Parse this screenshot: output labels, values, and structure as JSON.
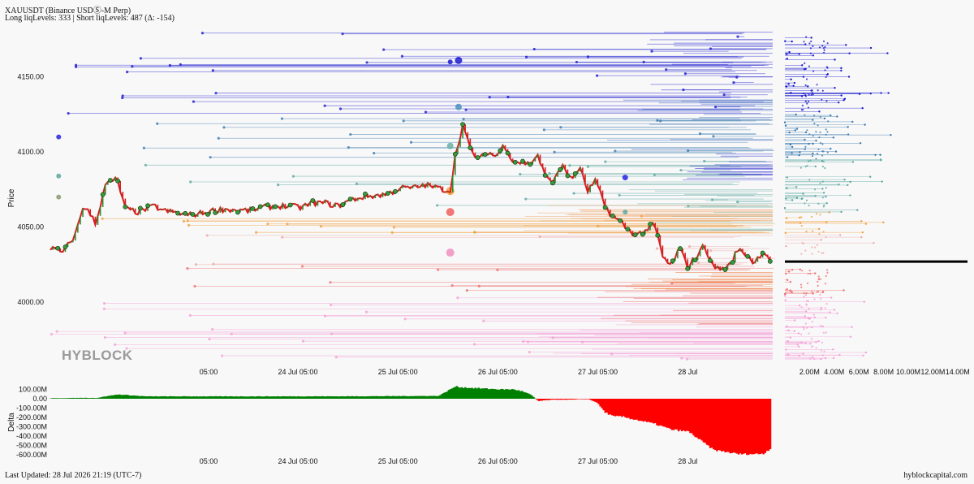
{
  "header": {
    "title": "XAUUSDT (Binance USDⓈ-M Perp)",
    "subtitle": "Long liqLevels: 333 | Short liqLevels: 487 (Δ: -154)"
  },
  "footer": {
    "last_updated": "Last Updated: 28 Jul 2026 21:19 (UTC-7)",
    "site": "hyblockcapital.com"
  },
  "watermark": "HYBLOCK",
  "colors": {
    "candle_up": "#2e8b2e",
    "candle_down": "#d42020",
    "dot_fill": "#3a9a3a",
    "delta_pos": "#008000",
    "delta_neg": "#ff0000",
    "current_price_line": "#000000"
  },
  "chart_data": [
    {
      "type": "line",
      "name": "price-liquidation-heatmap",
      "ylabel": "Price",
      "yticks": [
        4150,
        4100,
        4050,
        4000
      ],
      "ytick_labels": [
        "4150.00",
        "4100.00",
        "4050.00",
        "4000.00"
      ],
      "ylim": [
        3960,
        4185
      ],
      "xticks": [
        "05:00",
        "24 Jul",
        "05:00",
        "25 Jul",
        "05:00",
        "26 Jul",
        "05:00",
        "27 Jul",
        "05:00",
        "28 Jul"
      ],
      "xrange_hours": [
        -33,
        141
      ],
      "xtick_hours": [
        5,
        24,
        29,
        48,
        53,
        72,
        77,
        96,
        101,
        120
      ],
      "price": {
        "x_hours": [
          -33,
          -30,
          -27,
          -25,
          -22,
          -20,
          -17,
          -15,
          -12,
          -10,
          -8,
          -6,
          -4,
          -2,
          0,
          3,
          6,
          9,
          12,
          15,
          18,
          21,
          24,
          27,
          30,
          33,
          36,
          39,
          42,
          45,
          48,
          51,
          54,
          57,
          60,
          63,
          64,
          66,
          68,
          70,
          72,
          74,
          76,
          78,
          80,
          82,
          84,
          86,
          88,
          90,
          92,
          94,
          96,
          98,
          100,
          102,
          104,
          106,
          108,
          110,
          112,
          114,
          116,
          118,
          120,
          122,
          124,
          126,
          128,
          130,
          132,
          134,
          136,
          138,
          140
        ],
        "y": [
          4036,
          4033,
          4045,
          4065,
          4052,
          4078,
          4082,
          4062,
          4060,
          4062,
          4064,
          4061,
          4060,
          4059,
          4058,
          4059,
          4061,
          4062,
          4061,
          4061,
          4063,
          4064,
          4064,
          4063,
          4066,
          4066,
          4064,
          4068,
          4070,
          4071,
          4072,
          4076,
          4076,
          4078,
          4076,
          4074,
          4095,
          4118,
          4100,
          4095,
          4100,
          4097,
          4105,
          4094,
          4093,
          4092,
          4098,
          4082,
          4081,
          4092,
          4081,
          4090,
          4074,
          4081,
          4064,
          4057,
          4053,
          4047,
          4045,
          4048,
          4052,
          4030,
          4024,
          4036,
          4024,
          4030,
          4038,
          4024,
          4022,
          4024,
          4035,
          4032,
          4026,
          4034,
          4028
        ]
      },
      "current_price": 4027
    },
    {
      "type": "bar",
      "name": "liquidation-level-profile",
      "xticks": [
        "2.00M",
        "4.00M",
        "6.00M",
        "8.00M",
        "10.00M",
        "12.00M",
        "14.00M"
      ],
      "xtick_values": [
        2,
        4,
        6,
        8,
        10,
        12,
        14
      ],
      "x_unit": "M",
      "xlim": [
        0,
        15
      ]
    },
    {
      "type": "area",
      "name": "delta",
      "ylabel": "Delta",
      "yticks": [
        "100.00M",
        "0.00",
        "-100.00M",
        "-200.00M",
        "-300.00M",
        "-400.00M",
        "-500.00M",
        "-600.00M"
      ],
      "ytick_values": [
        100,
        0,
        -100,
        -200,
        -300,
        -400,
        -500,
        -600
      ],
      "ylim": [
        -650,
        130
      ],
      "xticks": [
        "05:00",
        "24 Jul",
        "05:00",
        "25 Jul",
        "05:00",
        "26 Jul",
        "05:00",
        "27 Jul",
        "05:00",
        "28 Jul"
      ],
      "x_hours": [
        -33,
        -25,
        -22,
        -20,
        -17,
        -15,
        -12,
        -10,
        0,
        20,
        40,
        60,
        62,
        64,
        66,
        70,
        75,
        78,
        80,
        82,
        84,
        86,
        88,
        90,
        92,
        94,
        96,
        98,
        100,
        102,
        104,
        106,
        108,
        112,
        116,
        120,
        126,
        132,
        136,
        138,
        140
      ],
      "values": [
        5,
        10,
        8,
        25,
        45,
        40,
        30,
        25,
        25,
        25,
        26,
        30,
        80,
        130,
        120,
        110,
        100,
        100,
        80,
        45,
        -25,
        -15,
        -10,
        -10,
        -10,
        -5,
        -5,
        -40,
        -145,
        -190,
        -190,
        -210,
        -230,
        -270,
        -330,
        -350,
        -545,
        -590,
        -590,
        -585,
        -520
      ]
    }
  ]
}
